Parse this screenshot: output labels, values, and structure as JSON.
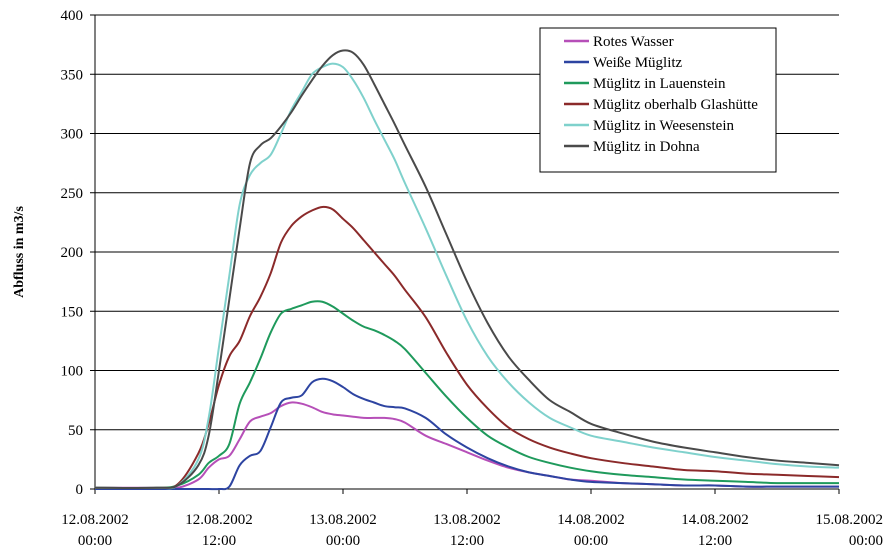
{
  "chart_data": {
    "type": "line",
    "title": "",
    "xlabel": "",
    "ylabel": "Abfluss in m3/s",
    "ylim": [
      0,
      400
    ],
    "yticks": [
      0,
      50,
      100,
      150,
      200,
      250,
      300,
      350,
      400
    ],
    "xlim": [
      "2002-08-12 00:00",
      "2002-08-15 00:00"
    ],
    "xticks": [
      {
        "value": "2002-08-12 00:00",
        "line1": "12.08.2002",
        "line2": "00:00"
      },
      {
        "value": "2002-08-12 12:00",
        "line1": "12.08.2002",
        "line2": "12:00"
      },
      {
        "value": "2002-08-13 00:00",
        "line1": "13.08.2002",
        "line2": "00:00"
      },
      {
        "value": "2002-08-13 12:00",
        "line1": "13.08.2002",
        "line2": "12:00"
      },
      {
        "value": "2002-08-14 00:00",
        "line1": "14.08.2002",
        "line2": "00:00"
      },
      {
        "value": "2002-08-14 12:00",
        "line1": "14.08.2002",
        "line2": "12:00"
      },
      {
        "value": "2002-08-15 00:00",
        "line1": "15.08.2002",
        "line2": "00:00"
      }
    ],
    "grid": "horizontal",
    "legend_position": "top-right",
    "x": [
      "2002-08-12 00:00",
      "2002-08-12 06:00",
      "2002-08-12 08:00",
      "2002-08-12 10:00",
      "2002-08-12 11:00",
      "2002-08-12 12:00",
      "2002-08-12 13:00",
      "2002-08-12 14:00",
      "2002-08-12 15:00",
      "2002-08-12 16:00",
      "2002-08-12 17:00",
      "2002-08-12 18:00",
      "2002-08-12 19:00",
      "2002-08-12 20:00",
      "2002-08-12 21:00",
      "2002-08-12 22:00",
      "2002-08-12 23:00",
      "2002-08-13 00:00",
      "2002-08-13 01:00",
      "2002-08-13 02:00",
      "2002-08-13 03:00",
      "2002-08-13 04:00",
      "2002-08-13 05:00",
      "2002-08-13 06:00",
      "2002-08-13 08:00",
      "2002-08-13 10:00",
      "2002-08-13 12:00",
      "2002-08-13 14:00",
      "2002-08-13 16:00",
      "2002-08-13 18:00",
      "2002-08-13 20:00",
      "2002-08-13 22:00",
      "2002-08-14 00:00",
      "2002-08-14 03:00",
      "2002-08-14 06:00",
      "2002-08-14 09:00",
      "2002-08-14 12:00",
      "2002-08-14 15:00",
      "2002-08-14 18:00",
      "2002-08-14 21:00",
      "2002-08-15 00:00"
    ],
    "series": [
      {
        "name": "Rotes Wasser",
        "color": "#b64fb8",
        "values": [
          1,
          1,
          1,
          8,
          18,
          25,
          28,
          42,
          57,
          61,
          64,
          70,
          73,
          72,
          69,
          65,
          63,
          62,
          61,
          60,
          60,
          60,
          59,
          56,
          45,
          38,
          31,
          24,
          18,
          14,
          11,
          8,
          7,
          5,
          4,
          3,
          3,
          2,
          2,
          2,
          2
        ]
      },
      {
        "name": "Weiße Müglitz",
        "color": "#2d44a1",
        "values": [
          0,
          0,
          0,
          0,
          0,
          0,
          2,
          20,
          28,
          32,
          52,
          73,
          77,
          79,
          90,
          93,
          91,
          86,
          80,
          76,
          73,
          70,
          69,
          68,
          60,
          46,
          35,
          26,
          19,
          14,
          11,
          8,
          6,
          5,
          4,
          3,
          3,
          2,
          2,
          2,
          2
        ]
      },
      {
        "name": "Müglitz in Lauenstein",
        "color": "#1f9a5c",
        "values": [
          1,
          1,
          3,
          12,
          22,
          28,
          38,
          72,
          90,
          110,
          132,
          148,
          152,
          155,
          158,
          158,
          154,
          148,
          142,
          137,
          134,
          130,
          125,
          118,
          98,
          78,
          60,
          45,
          35,
          27,
          22,
          18,
          15,
          12,
          10,
          8,
          7,
          6,
          5,
          5,
          5
        ]
      },
      {
        "name": "Müglitz oberhalb Glashütte",
        "color": "#8b2a2a",
        "values": [
          1,
          1,
          4,
          30,
          55,
          88,
          112,
          125,
          146,
          162,
          182,
          208,
          222,
          230,
          235,
          238,
          236,
          228,
          220,
          210,
          200,
          190,
          180,
          168,
          145,
          115,
          88,
          68,
          52,
          42,
          35,
          30,
          26,
          22,
          19,
          16,
          15,
          13,
          12,
          11,
          10
        ]
      },
      {
        "name": "Müglitz in Weesenstein",
        "color": "#7fd1cc",
        "values": [
          1,
          1,
          3,
          25,
          60,
          120,
          180,
          240,
          265,
          275,
          282,
          300,
          320,
          335,
          350,
          356,
          359,
          356,
          345,
          330,
          312,
          295,
          278,
          258,
          220,
          180,
          142,
          112,
          90,
          73,
          60,
          52,
          45,
          40,
          35,
          31,
          27,
          24,
          21,
          19,
          18
        ]
      },
      {
        "name": "Müglitz in Dohna",
        "color": "#4a4a4a",
        "values": [
          1,
          1,
          3,
          20,
          45,
          100,
          160,
          220,
          275,
          290,
          296,
          306,
          318,
          332,
          345,
          357,
          366,
          370,
          368,
          358,
          342,
          325,
          308,
          290,
          255,
          215,
          175,
          140,
          112,
          92,
          75,
          65,
          55,
          47,
          40,
          35,
          31,
          27,
          24,
          22,
          20
        ]
      }
    ]
  }
}
